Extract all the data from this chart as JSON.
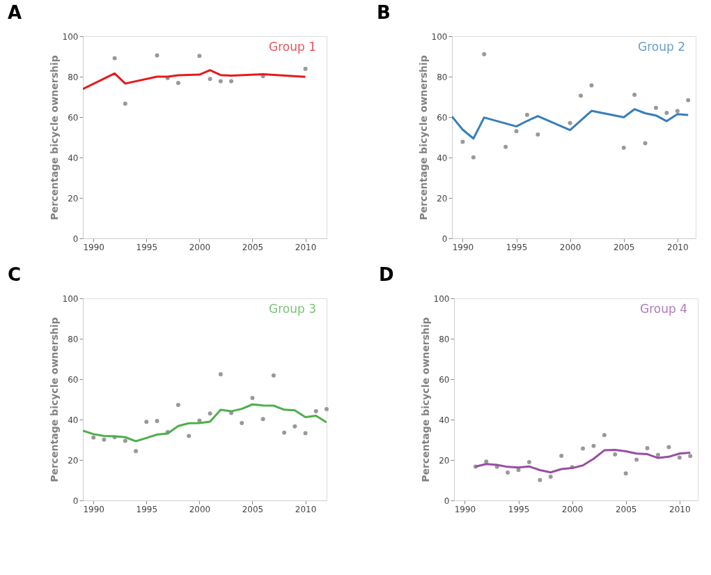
{
  "chart_data": [
    {
      "type": "line",
      "title": "A",
      "ylabel": "Percentage bicycle ownership",
      "xlim": [
        1989,
        2012
      ],
      "ylim": [
        0,
        100
      ],
      "xticks": [
        1990,
        1995,
        2000,
        2005,
        2010
      ],
      "yticks": [
        0,
        20,
        40,
        60,
        80,
        100
      ],
      "grid": false,
      "series": [
        {
          "type": "scatter",
          "marker": "circle",
          "color": "#999999",
          "x": [
            1992,
            1993,
            1996,
            1997,
            1998,
            2000,
            2001,
            2002,
            2003,
            2006,
            2010
          ],
          "values": [
            89.1,
            66.6,
            90.5,
            79.3,
            76.9,
            90.3,
            78.9,
            77.8,
            77.8,
            80.3,
            83.9
          ]
        },
        {
          "name": "Group 1",
          "color": "#e41a1c",
          "x": [
            1989,
            1992,
            1993,
            1996,
            1997,
            1998,
            2000,
            2001,
            2002,
            2003,
            2006,
            2010
          ],
          "values": [
            73.9,
            81.6,
            76.6,
            80.0,
            80.0,
            80.7,
            81.0,
            83.2,
            80.8,
            80.5,
            81.2,
            79.9
          ]
        }
      ]
    },
    {
      "type": "line",
      "title": "B",
      "ylabel": "Percentage bicycle ownership",
      "xlim": [
        1989,
        2011.7
      ],
      "ylim": [
        0,
        100
      ],
      "xticks": [
        1990,
        1995,
        2000,
        2005,
        2010
      ],
      "yticks": [
        0,
        20,
        40,
        60,
        80,
        100
      ],
      "grid": false,
      "series": [
        {
          "type": "scatter",
          "marker": "circle",
          "color": "#999999",
          "x": [
            1990,
            1991,
            1992,
            1994,
            1995,
            1996,
            1997,
            2000,
            2001,
            2002,
            2005,
            2006,
            2007,
            2008,
            2009,
            2010,
            2011
          ],
          "values": [
            47.8,
            40.1,
            91.1,
            45.3,
            53.0,
            61.1,
            51.4,
            57.1,
            70.6,
            75.7,
            44.8,
            71.0,
            47.1,
            64.6,
            62.1,
            63.0,
            68.4
          ]
        },
        {
          "name": "Group 2",
          "color": "#377eb8",
          "x": [
            1989,
            1990,
            1991,
            1992,
            1995,
            1996,
            1997,
            2000,
            2002,
            2005,
            2006,
            2007,
            2008,
            2009,
            2010,
            2011
          ],
          "values": [
            60.3,
            53.8,
            49.4,
            59.8,
            55.4,
            58.1,
            60.5,
            53.6,
            63.1,
            59.9,
            63.9,
            61.9,
            60.8,
            58.0,
            61.5,
            61.0
          ]
        }
      ]
    },
    {
      "type": "line",
      "title": "C",
      "ylabel": "Percentage bicycle ownership",
      "xlim": [
        1989,
        2012
      ],
      "ylim": [
        0,
        100
      ],
      "xticks": [
        1990,
        1995,
        2000,
        2005,
        2010
      ],
      "yticks": [
        0,
        20,
        40,
        60,
        80,
        100
      ],
      "grid": false,
      "series": [
        {
          "type": "scatter",
          "marker": "circle",
          "color": "#999999",
          "x": [
            1990,
            1991,
            1992,
            1993,
            1994,
            1995,
            1996,
            1997,
            1998,
            1999,
            2000,
            2001,
            2002,
            2003,
            2004,
            2005,
            2006,
            2007,
            2008,
            2009,
            2010,
            2011,
            2012
          ],
          "values": [
            31.1,
            30.1,
            31.3,
            29.5,
            24.4,
            38.9,
            39.3,
            33.8,
            47.2,
            31.9,
            39.5,
            43.0,
            62.4,
            43.3,
            38.3,
            50.7,
            40.3,
            61.8,
            33.5,
            36.6,
            33.3,
            44.1,
            45.2
          ]
        },
        {
          "name": "Group 3",
          "color": "#4daf4a",
          "x": [
            1989,
            1990,
            1991,
            1992,
            1993,
            1994,
            1995,
            1996,
            1997,
            1998,
            1999,
            2000,
            2001,
            2002,
            2003,
            2004,
            2005,
            2006,
            2007,
            2008,
            2009,
            2010,
            2011,
            2012
          ],
          "values": [
            34.5,
            32.8,
            31.9,
            31.7,
            31.3,
            29.3,
            30.9,
            32.6,
            33.1,
            36.8,
            38.2,
            38.3,
            39.0,
            44.8,
            44.1,
            45.3,
            47.5,
            47.0,
            46.9,
            44.9,
            44.6,
            41.2,
            41.9,
            38.6
          ]
        }
      ]
    },
    {
      "type": "line",
      "title": "D",
      "ylabel": "Percentage bicycle ownership",
      "xlim": [
        1989,
        2011.7
      ],
      "ylim": [
        0,
        100
      ],
      "xticks": [
        1990,
        1995,
        2000,
        2005,
        2010
      ],
      "yticks": [
        0,
        20,
        40,
        60,
        80,
        100
      ],
      "grid": false,
      "series": [
        {
          "type": "scatter",
          "marker": "circle",
          "color": "#999999",
          "x": [
            1991,
            1992,
            1993,
            1994,
            1995,
            1996,
            1997,
            1998,
            1999,
            2000,
            2001,
            2002,
            2003,
            2004,
            2005,
            2006,
            2007,
            2008,
            2009,
            2010,
            2011
          ],
          "values": [
            16.7,
            19.2,
            16.6,
            13.8,
            15.1,
            19.0,
            10.1,
            11.7,
            22.1,
            16.5,
            25.7,
            27.0,
            32.3,
            22.8,
            13.4,
            20.2,
            25.9,
            22.5,
            26.4,
            21.2,
            22.0
          ]
        },
        {
          "name": "Group 4",
          "color": "#984ea3",
          "x": [
            1991,
            1992,
            1993,
            1994,
            1995,
            1996,
            1997,
            1998,
            1999,
            2000,
            2001,
            2002,
            2003,
            2004,
            2005,
            2006,
            2007,
            2008,
            2009,
            2010,
            2011
          ],
          "values": [
            16.7,
            18.0,
            17.6,
            16.6,
            16.3,
            16.8,
            15.0,
            13.9,
            15.5,
            16.0,
            17.3,
            20.6,
            24.8,
            25.0,
            24.3,
            23.2,
            22.9,
            21.0,
            21.6,
            23.2,
            23.6
          ]
        }
      ]
    }
  ]
}
